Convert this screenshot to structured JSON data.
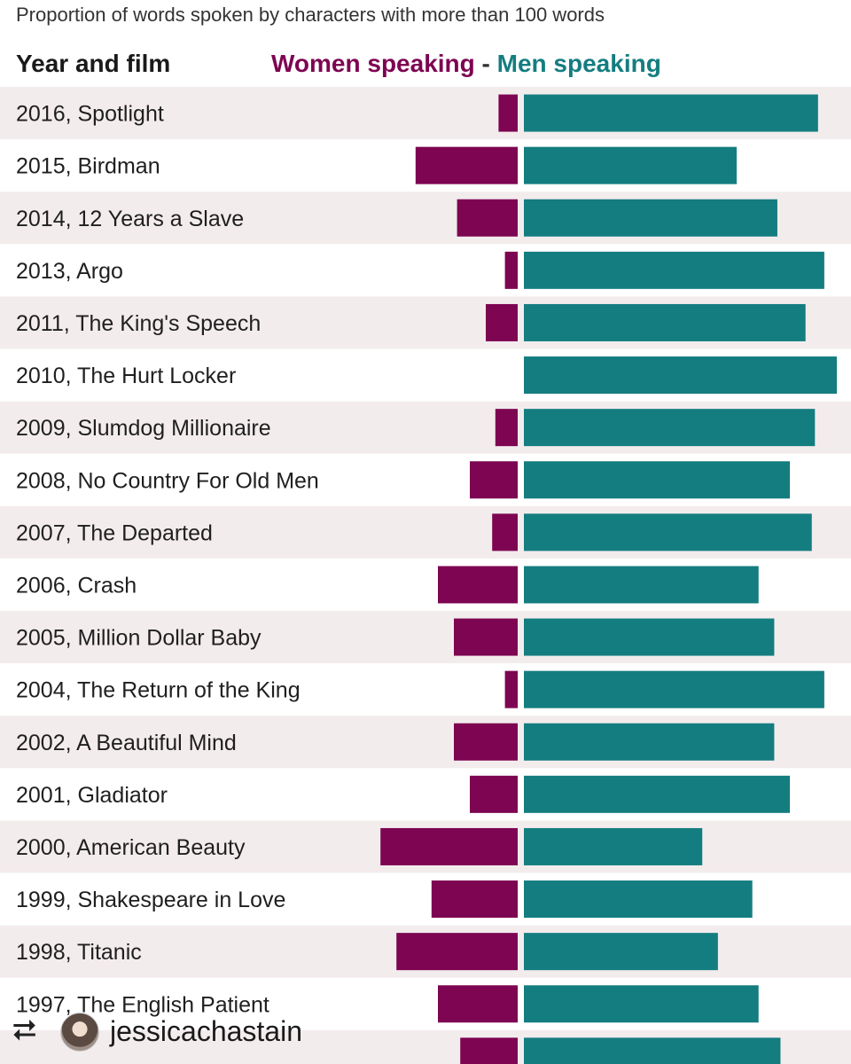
{
  "chart_data": {
    "type": "bar",
    "title": "Proportion of words spoken by characters with more than 100 words",
    "category_header": "Year and film",
    "series": [
      {
        "name": "Women speaking",
        "color": "#7d0552",
        "values": [
          6,
          32,
          19,
          4,
          10,
          0,
          7,
          15,
          8,
          25,
          20,
          4,
          20,
          15,
          43,
          27,
          38,
          25,
          18
        ]
      },
      {
        "name": "Men speaking",
        "color": "#147d80",
        "values": [
          94,
          68,
          81,
          96,
          90,
          100,
          93,
          85,
          92,
          75,
          80,
          96,
          80,
          85,
          57,
          73,
          62,
          75,
          82
        ]
      }
    ],
    "legend_separator": "-",
    "categories": [
      "2016, Spotlight",
      "2015, Birdman",
      "2014, 12 Years a Slave",
      "2013, Argo",
      "2011, The King's Speech",
      "2010, The Hurt Locker",
      "2009, Slumdog Millionaire",
      "2008, No Country For Old Men",
      "2007, The Departed",
      "2006, Crash",
      "2005, Million Dollar Baby",
      "2004, The Return of the King",
      "2002, A Beautiful Mind",
      "2001, Gladiator",
      "2000, American Beauty",
      "1999, Shakespeare in Love",
      "1998, Titanic",
      "1997, The English Patient",
      ""
    ],
    "xlim": [
      0,
      100
    ],
    "row_stripe_color": "#f3eced"
  },
  "repost": {
    "icon": "repost-icon",
    "username": "jessicachastain"
  }
}
